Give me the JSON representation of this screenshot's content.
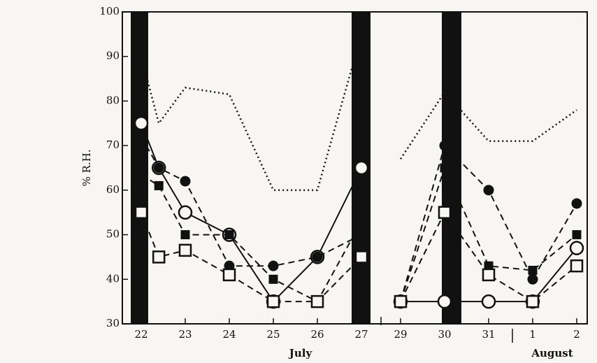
{
  "chart_data": {
    "type": "line",
    "y_label": "% R.H.",
    "xticks": [
      22,
      23,
      24,
      25,
      26,
      27,
      29,
      30,
      31,
      {
        "value": 32,
        "label": "1"
      },
      {
        "value": 33,
        "label": "2"
      }
    ],
    "month_labels": [
      "July",
      "August"
    ],
    "ylim": [
      30,
      100
    ],
    "yticks": [
      30,
      40,
      50,
      60,
      70,
      80,
      90,
      100
    ],
    "series": [
      {
        "color": "#111111",
        "style": "dotted",
        "marker": "none",
        "x": [
          22,
          22.4,
          23,
          24,
          25,
          26,
          27,
          28,
          29,
          30,
          31,
          32,
          33
        ],
        "values": [
          90,
          75,
          83,
          81.5,
          60,
          60,
          95,
          null,
          67,
          82,
          71,
          71,
          78
        ]
      },
      {
        "color": "#111111",
        "style": "solid",
        "marker": "open-circle",
        "x": [
          22,
          22.4,
          23,
          24,
          25,
          26,
          27,
          28,
          29,
          30,
          31,
          32,
          33
        ],
        "values": [
          75,
          65,
          55,
          50,
          35,
          45,
          65,
          null,
          35,
          35,
          35,
          35,
          47
        ]
      },
      {
        "color": "#111111",
        "style": "dashed",
        "marker": "filled-circle",
        "x": [
          22,
          22.4,
          23,
          24,
          25,
          26,
          27,
          28,
          29,
          30,
          31,
          32,
          33
        ],
        "values": [
          72,
          65,
          62,
          43,
          43,
          45,
          50,
          null,
          35,
          70,
          60,
          40,
          57
        ]
      },
      {
        "color": "#111111",
        "style": "dashed",
        "marker": "filled-square",
        "x": [
          22,
          22.4,
          23,
          24,
          25,
          26,
          27,
          28,
          29,
          30,
          31,
          32,
          33
        ],
        "values": [
          63.5,
          61,
          50,
          50,
          40,
          35,
          53,
          null,
          35,
          65,
          43,
          42,
          50
        ]
      },
      {
        "color": "#111111",
        "style": "dashed",
        "marker": "open-square",
        "x": [
          22,
          22.4,
          23,
          24,
          25,
          26,
          27,
          28,
          29,
          30,
          31,
          32,
          33
        ],
        "values": [
          55,
          45,
          46.5,
          41,
          35,
          35,
          45,
          null,
          35,
          55,
          41,
          35,
          43
        ]
      }
    ]
  }
}
